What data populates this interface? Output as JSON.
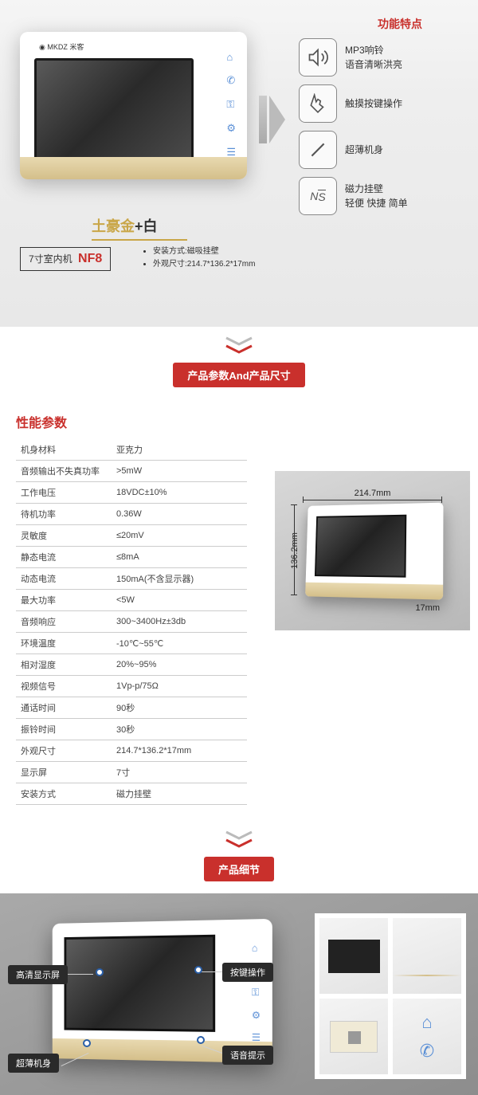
{
  "section1": {
    "logo": "◉ MKDZ 米客",
    "color_label_gold": "土豪金",
    "color_label_plus": "+",
    "color_label_white": "白",
    "model_prefix": "7寸室内机",
    "model": "NF8",
    "install_method": "安装方式:磁吸挂壁",
    "dimensions": "外观尺寸:214.7*136.2*17mm",
    "feature_title": "功能特点",
    "features": [
      {
        "icon": "🔊",
        "line1": "MP3响铃",
        "line2": "语音清晰洪亮"
      },
      {
        "icon": "✋",
        "line1": "触摸按键操作",
        "line2": ""
      },
      {
        "icon": "⁄",
        "line1": "超薄机身",
        "line2": ""
      },
      {
        "icon": "N/S",
        "line1": "磁力挂壁",
        "line2": "轻便 快捷 简单"
      }
    ]
  },
  "section2_title": "产品参数And产品尺寸",
  "spec_title": "性能参数",
  "specs": [
    [
      "机身材料",
      "亚克力"
    ],
    [
      "音频输出不失真功率",
      ">5mW"
    ],
    [
      "工作电压",
      "18VDC±10%"
    ],
    [
      "待机功率",
      "0.36W"
    ],
    [
      "灵敏度",
      "≤20mV"
    ],
    [
      "静态电流",
      "≤8mA"
    ],
    [
      "动态电流",
      "150mA(不含显示器)"
    ],
    [
      "最大功率",
      "<5W"
    ],
    [
      "音频响应",
      "300~3400Hz±3db"
    ],
    [
      "环境温度",
      "-10℃~55℃"
    ],
    [
      "相对湿度",
      "20%~95%"
    ],
    [
      "视频信号",
      "1Vp-p/75Ω"
    ],
    [
      "通话时间",
      "90秒"
    ],
    [
      "振铃时间",
      "30秒"
    ],
    [
      "外观尺寸",
      "214.7*136.2*17mm"
    ],
    [
      "显示屏",
      "7寸"
    ],
    [
      "安装方式",
      "磁力挂壁"
    ]
  ],
  "dims": {
    "w": "214.7mm",
    "h": "136.2mm",
    "d": "17mm"
  },
  "section3_title": "产品细节",
  "callouts": {
    "c1": "高清显示屏",
    "c2": "超薄机身",
    "c3": "按键操作",
    "c4": "语音提示"
  },
  "colors": {
    "accent_red": "#c9302c",
    "gold": "#c9a648"
  }
}
